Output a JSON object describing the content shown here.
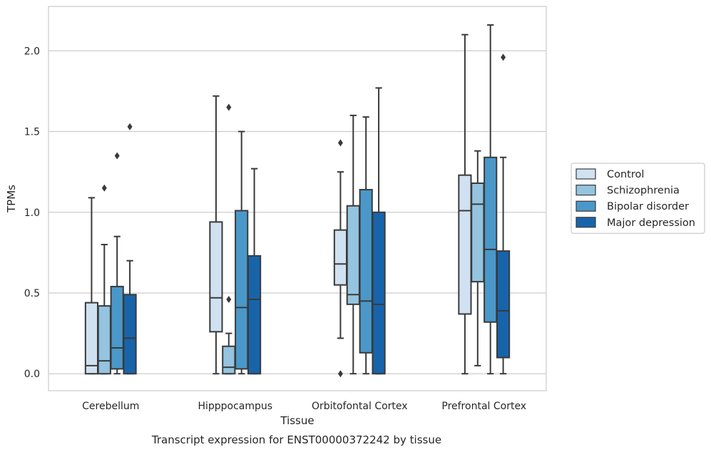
{
  "chart_data": {
    "type": "box",
    "title": "",
    "caption": "Transcript expression for ENST00000372242 by tissue",
    "xlabel": "Tissue",
    "ylabel": "TPMs",
    "ylim": [
      -0.105,
      2.275
    ],
    "yticks": [
      0.0,
      0.5,
      1.0,
      1.5,
      2.0
    ],
    "ytick_labels": [
      "0.0",
      "0.5",
      "1.0",
      "1.5",
      "2.0"
    ],
    "grid": "horizontal",
    "legend_position": "right",
    "categories": [
      "Cerebellum",
      "Hipppocampus",
      "Orbitofontal Cortex",
      "Prefrontal Cortex"
    ],
    "series": [
      {
        "name": "Control",
        "color": "#d0e1f2",
        "boxes": [
          {
            "whisker_low": 0.0,
            "q1": 0.0,
            "median": 0.05,
            "q3": 0.44,
            "whisker_high": 1.09,
            "outliers": []
          },
          {
            "whisker_low": 0.0,
            "q1": 0.26,
            "median": 0.47,
            "q3": 0.94,
            "whisker_high": 1.72,
            "outliers": []
          },
          {
            "whisker_low": 0.22,
            "q1": 0.55,
            "median": 0.68,
            "q3": 0.89,
            "whisker_high": 1.25,
            "outliers": [
              1.43,
              0.0
            ]
          },
          {
            "whisker_low": 0.0,
            "q1": 0.37,
            "median": 1.01,
            "q3": 1.23,
            "whisker_high": 2.1,
            "outliers": []
          }
        ]
      },
      {
        "name": "Schizophrenia",
        "color": "#94c4df",
        "boxes": [
          {
            "whisker_low": 0.0,
            "q1": 0.0,
            "median": 0.08,
            "q3": 0.42,
            "whisker_high": 0.8,
            "outliers": [
              1.15
            ]
          },
          {
            "whisker_low": 0.0,
            "q1": 0.0,
            "median": 0.04,
            "q3": 0.17,
            "whisker_high": 0.25,
            "outliers": [
              0.46,
              1.65
            ]
          },
          {
            "whisker_low": 0.0,
            "q1": 0.43,
            "median": 0.49,
            "q3": 1.04,
            "whisker_high": 1.6,
            "outliers": []
          },
          {
            "whisker_low": 0.05,
            "q1": 0.57,
            "median": 1.05,
            "q3": 1.18,
            "whisker_high": 1.38,
            "outliers": []
          }
        ]
      },
      {
        "name": "Bipolar disorder",
        "color": "#4a98c9",
        "boxes": [
          {
            "whisker_low": 0.0,
            "q1": 0.03,
            "median": 0.16,
            "q3": 0.54,
            "whisker_high": 0.85,
            "outliers": [
              1.35
            ]
          },
          {
            "whisker_low": 0.0,
            "q1": 0.03,
            "median": 0.41,
            "q3": 1.01,
            "whisker_high": 1.5,
            "outliers": []
          },
          {
            "whisker_low": 0.0,
            "q1": 0.13,
            "median": 0.45,
            "q3": 1.14,
            "whisker_high": 1.59,
            "outliers": []
          },
          {
            "whisker_low": 0.0,
            "q1": 0.32,
            "median": 0.77,
            "q3": 1.34,
            "whisker_high": 2.16,
            "outliers": []
          }
        ]
      },
      {
        "name": "Major depression",
        "color": "#1764ab",
        "boxes": [
          {
            "whisker_low": 0.0,
            "q1": 0.0,
            "median": 0.22,
            "q3": 0.49,
            "whisker_high": 0.7,
            "outliers": [
              1.53
            ]
          },
          {
            "whisker_low": 0.0,
            "q1": 0.0,
            "median": 0.46,
            "q3": 0.73,
            "whisker_high": 1.27,
            "outliers": []
          },
          {
            "whisker_low": 0.0,
            "q1": 0.0,
            "median": 0.43,
            "q3": 1.0,
            "whisker_high": 1.77,
            "outliers": []
          },
          {
            "whisker_low": 0.0,
            "q1": 0.1,
            "median": 0.39,
            "q3": 0.76,
            "whisker_high": 1.34,
            "outliers": [
              1.96
            ]
          }
        ]
      }
    ]
  }
}
